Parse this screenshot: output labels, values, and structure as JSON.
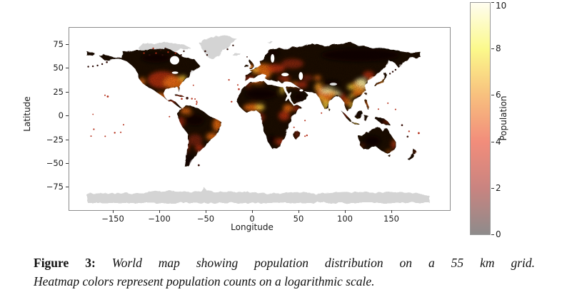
{
  "figure": {
    "plot": {
      "xlabel": "Longitude",
      "ylabel": "Latitude",
      "x_ticks": [
        "−150",
        "−100",
        "−50",
        "0",
        "50",
        "100",
        "150"
      ],
      "y_ticks": [
        "75",
        "50",
        "25",
        "0",
        "−25",
        "−50",
        "−75"
      ]
    },
    "colorbar": {
      "label": "Population",
      "ticks": [
        "10",
        "8",
        "6",
        "4",
        "2",
        "0"
      ],
      "min": 0,
      "max": 10,
      "scale": "logarithmic",
      "gradient_stops": [
        "#8e8b8b",
        "#c98480",
        "#f28d7b",
        "#f8c07e",
        "#fbf98b",
        "#fffdf0"
      ],
      "nodata_land_color": "#d4d4d4"
    },
    "caption": {
      "tag": "Figure 3:",
      "line1": "World map showing population distribution on a 55 km grid.",
      "line2": "Heatmap colors represent population counts on a logarithmic scale."
    }
  }
}
